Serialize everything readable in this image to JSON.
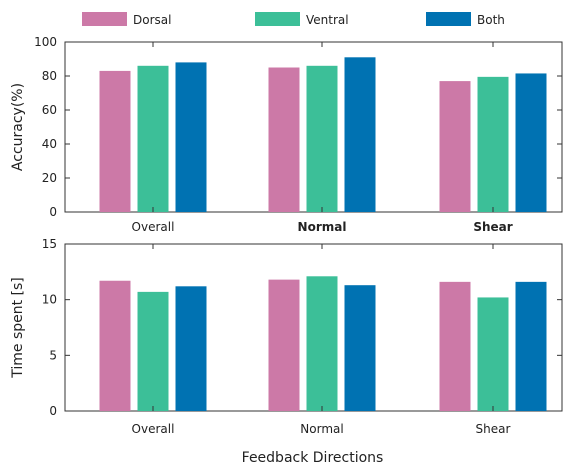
{
  "chart_data": {
    "type": "bar",
    "legend": [
      {
        "name": "Dorsal",
        "color": "#cc79a7"
      },
      {
        "name": "Ventral",
        "color": "#3cbf98"
      },
      {
        "name": "Both",
        "color": "#0072b2"
      }
    ],
    "xlabel": "Feedback Directions",
    "panels": [
      {
        "id": "accuracy",
        "ylabel": "Accuracy(%)",
        "ylim": [
          0,
          100
        ],
        "yticks": [
          0,
          20,
          40,
          60,
          80,
          100
        ],
        "categories": [
          "Overall",
          "Normal",
          "Shear"
        ],
        "bold_categories": [
          false,
          true,
          true
        ],
        "series": [
          {
            "name": "Dorsal",
            "values": [
              83,
              85,
              77
            ]
          },
          {
            "name": "Ventral",
            "values": [
              86,
              86,
              79.5
            ]
          },
          {
            "name": "Both",
            "values": [
              88,
              91,
              81.5
            ]
          }
        ]
      },
      {
        "id": "time",
        "ylabel": "Time spent [s]",
        "ylim": [
          0,
          15
        ],
        "yticks": [
          0,
          5,
          10,
          15
        ],
        "categories": [
          "Overall",
          "Normal",
          "Shear"
        ],
        "bold_categories": [
          false,
          false,
          false
        ],
        "series": [
          {
            "name": "Dorsal",
            "values": [
              11.7,
              11.8,
              11.6
            ]
          },
          {
            "name": "Ventral",
            "values": [
              10.7,
              12.1,
              10.2
            ]
          },
          {
            "name": "Both",
            "values": [
              11.2,
              11.3,
              11.6
            ]
          }
        ]
      }
    ]
  }
}
